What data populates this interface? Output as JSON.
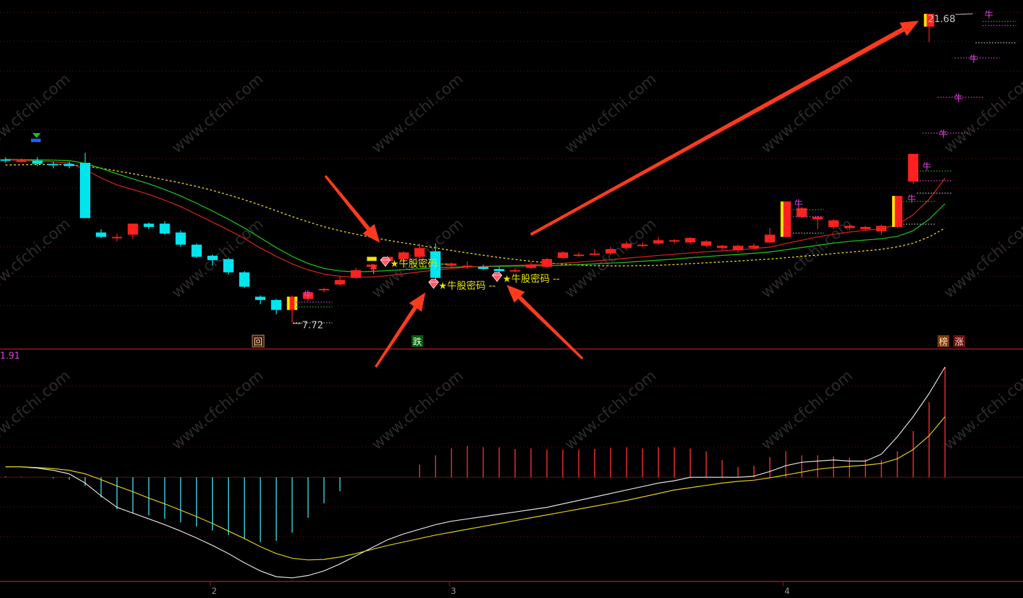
{
  "header": {
    "price_high_label": "21.68",
    "price_low_label": "7.72",
    "macd_value_label": "1.91"
  },
  "annotations": {
    "marker_label": "★牛股密码 --",
    "bull_tag": "牛",
    "badge_back": "回",
    "badge_fall": "跌",
    "badge_rank": "榜",
    "badge_rise": "涨"
  },
  "x_axis": {
    "ticks": [
      "2",
      "3",
      "4"
    ]
  },
  "watermark": "www.cfchi.com",
  "colors": {
    "up": "#ff2020",
    "down": "#00e5ee",
    "ma_red": "#d42020",
    "ma_green": "#19c419",
    "ma_dash": "#e6d21a",
    "dif": "#e6e6e6",
    "dea": "#e6d21a",
    "grid": "#8b1a1a",
    "arrow": "#ff3a1f"
  },
  "chart_data": [
    {
      "type": "candlestick",
      "y_range_hint": [
        7.72,
        21.68
      ],
      "candles": [
        {
          "o": 15.1,
          "c": 15.05,
          "h": 15.2,
          "l": 14.95
        },
        {
          "o": 15.05,
          "c": 15.05,
          "h": 15.15,
          "l": 14.95
        },
        {
          "o": 15.05,
          "c": 14.9,
          "h": 15.2,
          "l": 14.8
        },
        {
          "o": 14.9,
          "c": 14.85,
          "h": 15.0,
          "l": 14.7
        },
        {
          "o": 14.9,
          "c": 14.8,
          "h": 15.0,
          "l": 14.7
        },
        {
          "o": 14.95,
          "c": 12.45,
          "h": 15.4,
          "l": 12.45
        },
        {
          "o": 11.8,
          "c": 11.6,
          "h": 11.95,
          "l": 11.55
        },
        {
          "o": 11.6,
          "c": 11.6,
          "h": 11.75,
          "l": 11.4
        },
        {
          "o": 11.7,
          "c": 12.2,
          "h": 12.2,
          "l": 11.5
        },
        {
          "o": 12.2,
          "c": 12.05,
          "h": 12.25,
          "l": 11.95
        },
        {
          "o": 12.2,
          "c": 11.75,
          "h": 12.3,
          "l": 11.7
        },
        {
          "o": 11.8,
          "c": 11.25,
          "h": 11.9,
          "l": 11.15
        },
        {
          "o": 11.25,
          "c": 10.7,
          "h": 11.3,
          "l": 10.65
        },
        {
          "o": 10.75,
          "c": 10.55,
          "h": 10.8,
          "l": 10.3
        },
        {
          "o": 10.6,
          "c": 10.0,
          "h": 10.65,
          "l": 9.9
        },
        {
          "o": 10.0,
          "c": 9.35,
          "h": 10.05,
          "l": 9.3
        },
        {
          "o": 8.9,
          "c": 8.75,
          "h": 8.95,
          "l": 8.55
        },
        {
          "o": 8.75,
          "c": 8.3,
          "h": 8.8,
          "l": 8.1
        },
        {
          "o": 8.3,
          "c": 8.9,
          "h": 8.95,
          "l": 7.72
        },
        {
          "o": 8.8,
          "c": 9.1,
          "h": 9.15,
          "l": 8.7
        },
        {
          "o": 9.2,
          "c": 9.25,
          "h": 9.3,
          "l": 9.1
        },
        {
          "o": 9.45,
          "c": 9.65,
          "h": 9.85,
          "l": 9.4
        },
        {
          "o": 9.75,
          "c": 10.1,
          "h": 10.2,
          "l": 9.7
        },
        {
          "o": 10.25,
          "c": 10.35,
          "h": 10.4,
          "l": 10.0
        },
        {
          "o": 10.5,
          "c": 10.7,
          "h": 10.75,
          "l": 10.4
        },
        {
          "o": 10.6,
          "c": 10.9,
          "h": 10.95,
          "l": 10.4
        },
        {
          "o": 10.7,
          "c": 11.1,
          "h": 11.3,
          "l": 10.6
        },
        {
          "o": 10.95,
          "c": 9.75,
          "h": 11.3,
          "l": 9.7
        },
        {
          "o": 10.3,
          "c": 10.4,
          "h": 10.45,
          "l": 10.2
        },
        {
          "o": 10.3,
          "c": 10.3,
          "h": 10.5,
          "l": 10.15
        },
        {
          "o": 10.25,
          "c": 10.15,
          "h": 10.35,
          "l": 10.1
        },
        {
          "o": 10.15,
          "c": 10.05,
          "h": 10.25,
          "l": 9.95
        },
        {
          "o": 10.05,
          "c": 10.1,
          "h": 10.2,
          "l": 10.0
        },
        {
          "o": 10.2,
          "c": 10.35,
          "h": 10.45,
          "l": 10.15
        },
        {
          "o": 10.25,
          "c": 10.6,
          "h": 10.65,
          "l": 10.2
        },
        {
          "o": 10.65,
          "c": 10.9,
          "h": 10.95,
          "l": 10.6
        },
        {
          "o": 10.75,
          "c": 10.8,
          "h": 10.9,
          "l": 10.7
        },
        {
          "o": 10.8,
          "c": 10.85,
          "h": 11.05,
          "l": 10.75
        },
        {
          "o": 10.85,
          "c": 11.05,
          "h": 11.15,
          "l": 10.8
        },
        {
          "o": 11.1,
          "c": 11.3,
          "h": 11.4,
          "l": 11.05
        },
        {
          "o": 11.2,
          "c": 11.25,
          "h": 11.35,
          "l": 11.15
        },
        {
          "o": 11.3,
          "c": 11.45,
          "h": 11.6,
          "l": 11.25
        },
        {
          "o": 11.4,
          "c": 11.45,
          "h": 11.5,
          "l": 11.3
        },
        {
          "o": 11.35,
          "c": 11.55,
          "h": 11.6,
          "l": 11.3
        },
        {
          "o": 11.2,
          "c": 11.4,
          "h": 11.45,
          "l": 11.15
        },
        {
          "o": 11.1,
          "c": 11.2,
          "h": 11.25,
          "l": 11.0
        },
        {
          "o": 11.0,
          "c": 11.2,
          "h": 11.25,
          "l": 10.9
        },
        {
          "o": 11.1,
          "c": 11.2,
          "h": 11.3,
          "l": 11.05
        },
        {
          "o": 11.35,
          "c": 11.7,
          "h": 12.0,
          "l": 11.3
        },
        {
          "o": 11.6,
          "c": 13.2,
          "h": 13.2,
          "l": 11.55
        },
        {
          "o": 12.5,
          "c": 12.9,
          "h": 12.95,
          "l": 12.45
        },
        {
          "o": 12.4,
          "c": 12.5,
          "h": 12.55,
          "l": 11.95
        },
        {
          "o": 12.05,
          "c": 12.35,
          "h": 12.4,
          "l": 11.95
        },
        {
          "o": 12.0,
          "c": 12.1,
          "h": 12.15,
          "l": 11.9
        },
        {
          "o": 11.95,
          "c": 12.05,
          "h": 12.1,
          "l": 11.85
        },
        {
          "o": 11.85,
          "c": 12.1,
          "h": 12.15,
          "l": 11.7
        },
        {
          "o": 12.05,
          "c": 13.45,
          "h": 13.45,
          "l": 12.0
        },
        {
          "o": 14.1,
          "c": 15.35,
          "h": 15.35,
          "l": 14.0
        },
        {
          "o": 21.1,
          "c": 21.68,
          "h": 21.68,
          "l": 20.4
        }
      ],
      "ma_red": [
        15.08,
        15.06,
        15.02,
        14.99,
        14.94,
        14.65,
        14.26,
        13.95,
        13.74,
        13.52,
        13.26,
        12.97,
        12.62,
        12.27,
        11.91,
        11.53,
        11.1,
        10.72,
        10.38,
        10.11,
        9.92,
        9.82,
        9.78,
        9.79,
        9.85,
        9.93,
        10.02,
        10.1,
        10.17,
        10.23,
        10.27,
        10.3,
        10.32,
        10.34,
        10.37,
        10.41,
        10.46,
        10.51,
        10.57,
        10.64,
        10.7,
        10.76,
        10.82,
        10.88,
        10.93,
        10.97,
        11.02,
        11.07,
        11.14,
        11.3,
        11.45,
        11.6,
        11.72,
        11.82,
        11.9,
        11.97,
        12.15,
        12.6,
        13.3,
        14.25
      ],
      "ma_green": [
        15.1,
        15.09,
        15.08,
        15.07,
        15.05,
        14.92,
        14.7,
        14.45,
        14.22,
        14.0,
        13.74,
        13.45,
        13.12,
        12.77,
        12.4,
        12.0,
        11.56,
        11.12,
        10.72,
        10.4,
        10.18,
        10.06,
        10.02,
        10.04,
        10.08,
        10.12,
        10.16,
        10.2,
        10.23,
        10.25,
        10.26,
        10.27,
        10.28,
        10.29,
        10.3,
        10.32,
        10.35,
        10.38,
        10.42,
        10.46,
        10.5,
        10.55,
        10.6,
        10.66,
        10.71,
        10.76,
        10.81,
        10.86,
        10.92,
        11.02,
        11.12,
        11.22,
        11.32,
        11.4,
        11.46,
        11.52,
        11.62,
        11.88,
        12.4,
        13.1
      ],
      "ma_dash": [
        14.85,
        14.86,
        14.87,
        14.87,
        14.86,
        14.8,
        14.7,
        14.58,
        14.45,
        14.32,
        14.18,
        14.04,
        13.88,
        13.7,
        13.5,
        13.28,
        13.04,
        12.78,
        12.52,
        12.28,
        12.06,
        11.88,
        11.72,
        11.58,
        11.45,
        11.33,
        11.22,
        11.1,
        10.99,
        10.88,
        10.77,
        10.67,
        10.58,
        10.5,
        10.43,
        10.37,
        10.33,
        10.3,
        10.29,
        10.29,
        10.3,
        10.32,
        10.35,
        10.39,
        10.43,
        10.47,
        10.51,
        10.56,
        10.6,
        10.66,
        10.72,
        10.78,
        10.85,
        10.91,
        10.97,
        11.04,
        11.15,
        11.32,
        11.6,
        12.0
      ]
    },
    {
      "type": "macd",
      "zero_line": true,
      "hist": [
        0.02,
        0.01,
        0.0,
        -0.02,
        -0.04,
        -0.15,
        -0.35,
        -0.55,
        -0.62,
        -0.66,
        -0.72,
        -0.78,
        -0.85,
        -0.92,
        -1.0,
        -1.07,
        -1.12,
        -1.1,
        -0.96,
        -0.7,
        -0.45,
        -0.24,
        0,
        0,
        0,
        0,
        0.22,
        0.38,
        0.5,
        0.54,
        0.52,
        0.52,
        0.49,
        0.5,
        0.48,
        0.48,
        0.48,
        0.49,
        0.51,
        0.52,
        0.5,
        0.52,
        0.52,
        0.5,
        0.45,
        0.3,
        0.18,
        0.2,
        0.35,
        0.45,
        0.38,
        0.38,
        0.36,
        0.34,
        0.32,
        0.3,
        0.45,
        0.8,
        1.3,
        1.91
      ],
      "dif": [
        0.18,
        0.18,
        0.16,
        0.12,
        0.06,
        -0.1,
        -0.32,
        -0.52,
        -0.62,
        -0.72,
        -0.82,
        -0.93,
        -1.05,
        -1.18,
        -1.32,
        -1.48,
        -1.62,
        -1.72,
        -1.74,
        -1.7,
        -1.62,
        -1.5,
        -1.36,
        -1.22,
        -1.08,
        -0.98,
        -0.9,
        -0.82,
        -0.76,
        -0.72,
        -0.68,
        -0.64,
        -0.6,
        -0.56,
        -0.52,
        -0.46,
        -0.4,
        -0.34,
        -0.28,
        -0.22,
        -0.16,
        -0.1,
        -0.06,
        0.0,
        0.0,
        0.0,
        0.0,
        0.02,
        0.1,
        0.2,
        0.26,
        0.28,
        0.3,
        0.28,
        0.28,
        0.4,
        0.7,
        1.05,
        1.45,
        1.91
      ],
      "dea": [
        0.18,
        0.18,
        0.17,
        0.15,
        0.12,
        0.06,
        -0.04,
        -0.15,
        -0.25,
        -0.36,
        -0.46,
        -0.57,
        -0.68,
        -0.8,
        -0.93,
        -1.06,
        -1.2,
        -1.32,
        -1.4,
        -1.43,
        -1.42,
        -1.38,
        -1.32,
        -1.25,
        -1.18,
        -1.12,
        -1.06,
        -1.0,
        -0.95,
        -0.9,
        -0.85,
        -0.8,
        -0.75,
        -0.7,
        -0.65,
        -0.6,
        -0.55,
        -0.5,
        -0.45,
        -0.4,
        -0.34,
        -0.28,
        -0.22,
        -0.18,
        -0.14,
        -0.1,
        -0.07,
        -0.05,
        -0.01,
        0.04,
        0.09,
        0.14,
        0.17,
        0.19,
        0.21,
        0.24,
        0.32,
        0.48,
        0.72,
        1.05
      ]
    }
  ]
}
